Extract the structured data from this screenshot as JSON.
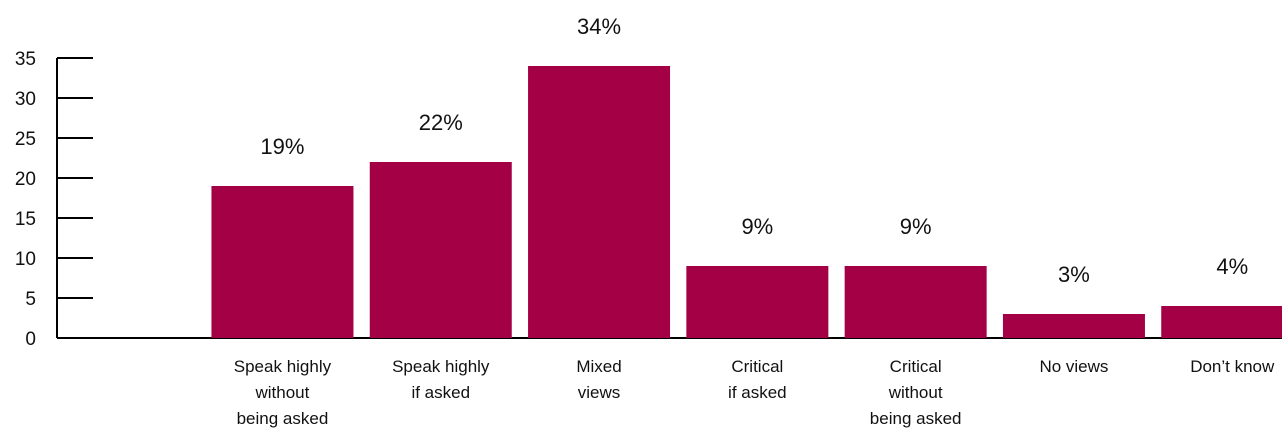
{
  "chart_data": {
    "type": "bar",
    "categories": [
      [
        "Speak highly",
        "without",
        "being asked"
      ],
      [
        "Speak highly",
        "if asked"
      ],
      [
        "Mixed",
        "views"
      ],
      [
        "Critical",
        "if asked"
      ],
      [
        "Critical",
        "without",
        "being asked"
      ],
      [
        "No views"
      ],
      [
        "Don’t know"
      ]
    ],
    "values": [
      19,
      22,
      34,
      9,
      9,
      3,
      4
    ],
    "data_labels": [
      "19%",
      "22%",
      "34%",
      "9%",
      "9%",
      "3%",
      "4%"
    ],
    "y_ticks": [
      0,
      5,
      10,
      15,
      20,
      25,
      30,
      35
    ],
    "ylim": [
      0,
      35
    ],
    "grid": false,
    "legend": "none",
    "colors": {
      "bar": "#a30045",
      "axis": "#000000"
    }
  }
}
